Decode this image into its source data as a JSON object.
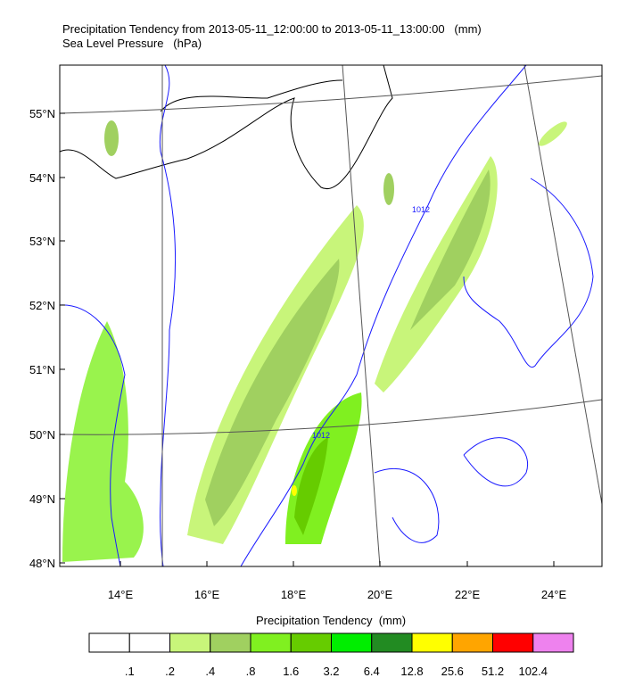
{
  "title": {
    "line1": "Precipitation Tendency from 2013-05-11_12:00:00 to 2013-05-11_13:00:00   (mm)",
    "line2": "Sea Level Pressure   (hPa)"
  },
  "map": {
    "lat_labels": [
      "55°N",
      "54°N",
      "53°N",
      "52°N",
      "51°N",
      "50°N",
      "49°N",
      "48°N"
    ],
    "lon_labels": [
      "14°E",
      "16°E",
      "18°E",
      "20°E",
      "22°E",
      "24°E"
    ],
    "contour_labels": [
      "1012",
      "1012"
    ]
  },
  "colorbar": {
    "title": "Precipitation Tendency  (mm)",
    "colors": [
      "#ffffff",
      "#ffffff",
      "#c8f57a",
      "#a0d060",
      "#80f020",
      "#66cc00",
      "#00ee00",
      "#228b22",
      "#ffff00",
      "#ffa500",
      "#ff0000",
      "#ee82ee"
    ],
    "labels": [
      ".1",
      ".2",
      ".4",
      ".8",
      "1.6",
      "3.2",
      "6.4",
      "12.8",
      "25.6",
      "51.2",
      "102.4"
    ]
  }
}
